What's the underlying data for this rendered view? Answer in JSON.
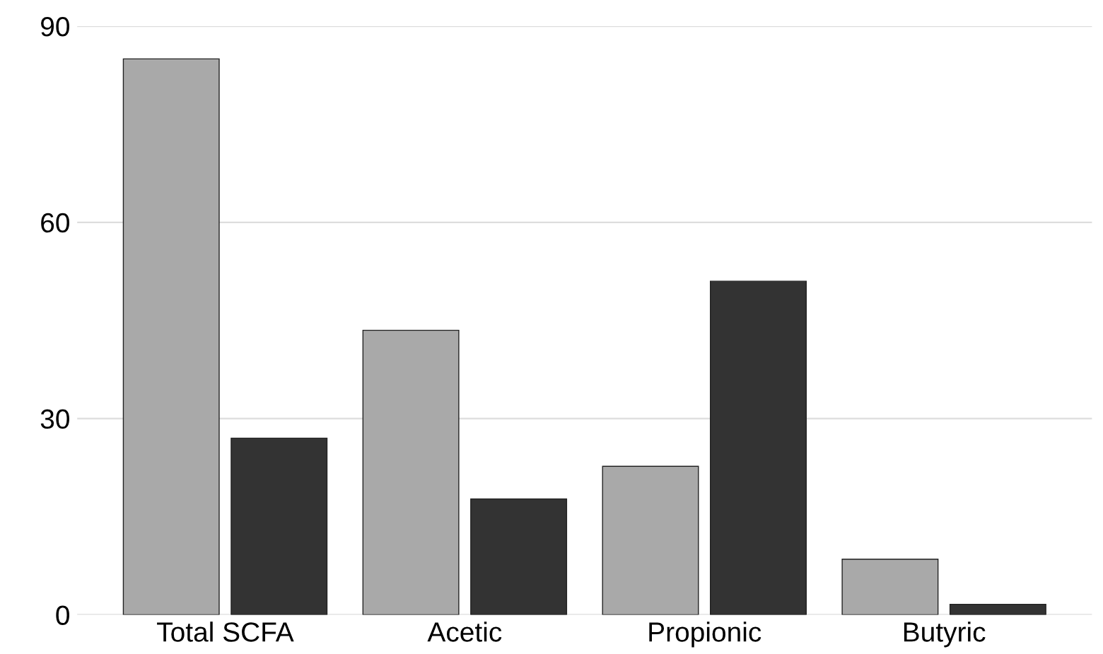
{
  "chart_data": {
    "type": "bar",
    "categories": [
      "Total SCFA",
      "Acetic",
      "Propionic",
      "Butyric"
    ],
    "series": [
      {
        "color": "#a9a9a9",
        "values": [
          85,
          43.5,
          22.7,
          8.5
        ]
      },
      {
        "color": "#333333",
        "values": [
          27,
          17.7,
          51,
          1.6
        ]
      }
    ],
    "ylim": [
      0,
      90
    ],
    "yticks": [
      0,
      30,
      60,
      90
    ],
    "grid": "y",
    "legend": false
  }
}
